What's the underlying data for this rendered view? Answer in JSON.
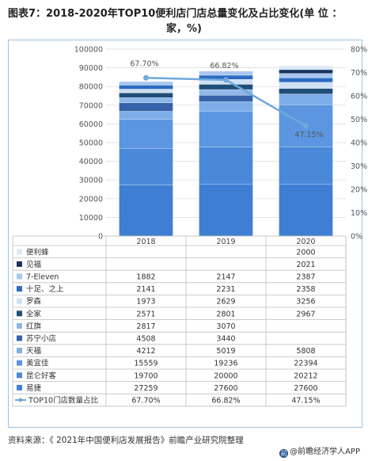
{
  "title": {
    "line1": "图表7：2018-2020年TOP10便利店门店总量变化及占比变化(单 位 ：",
    "line2": "家，%)"
  },
  "source_text": "资料来源：《 2021年中国便利店发展报告》前瞻产业研究院整理",
  "brand": {
    "text": "@前瞻经济学人APP"
  },
  "colors": {
    "line": "#6fa8dc",
    "grid": "#d9d9d9",
    "table_border": "#bfbfbf"
  },
  "chart_data": {
    "type": "bar",
    "stacked": true,
    "categories": [
      "2018",
      "2019",
      "2020"
    ],
    "y_left_ticks": [
      "100000",
      "90000",
      "80000",
      "70000",
      "60000",
      "50000",
      "40000",
      "30000",
      "20000",
      "10000",
      "0"
    ],
    "y_right_ticks": [
      "80%",
      "70%",
      "60%",
      "50%",
      "40%",
      "30%",
      "20%",
      "10%",
      "0%"
    ],
    "y_left_range": [
      0,
      100000
    ],
    "y_right_range": [
      0,
      80
    ],
    "grid": true,
    "series": [
      {
        "name": "易捷",
        "color": "#3f7fd3",
        "values": [
          27259,
          27600,
          27600
        ],
        "labels": [
          "27259",
          "27600",
          "27600"
        ]
      },
      {
        "name": "昆仑好客",
        "color": "#4a89d9",
        "values": [
          19700,
          20000,
          20212
        ],
        "labels": [
          "19700",
          "20000",
          "20212"
        ]
      },
      {
        "name": "美宜佳",
        "color": "#5c96e0",
        "values": [
          15559,
          19236,
          22394
        ],
        "labels": [
          "15559",
          "19236",
          "22394"
        ]
      },
      {
        "name": "天福",
        "color": "#7eaee9",
        "values": [
          4212,
          5019,
          5808
        ],
        "labels": [
          "4212",
          "5019",
          "5808"
        ]
      },
      {
        "name": "苏宁小店",
        "color": "#3562a8",
        "values": [
          4508,
          3440,
          null
        ],
        "labels": [
          "4508",
          "3440",
          ""
        ]
      },
      {
        "name": "红旗",
        "color": "#8fb8ea",
        "values": [
          2817,
          3070,
          null
        ],
        "labels": [
          "2817",
          "3070",
          ""
        ]
      },
      {
        "name": "全家",
        "color": "#1f4e79",
        "values": [
          2571,
          2801,
          2967
        ],
        "labels": [
          "2571",
          "2801",
          "2967"
        ]
      },
      {
        "name": "罗森",
        "color": "#cfe0f5",
        "values": [
          1973,
          2629,
          3256
        ],
        "labels": [
          "1973",
          "2629",
          "3256"
        ]
      },
      {
        "name": "十足、之上",
        "color": "#2e6bc2",
        "values": [
          2141,
          2231,
          2358
        ],
        "labels": [
          "2141",
          "2231",
          "2358"
        ]
      },
      {
        "name": "7-Eleven",
        "color": "#a9c6ee",
        "values": [
          1882,
          2147,
          2387
        ],
        "labels": [
          "1882",
          "2147",
          "2387"
        ]
      },
      {
        "name": "见福",
        "color": "#16365f",
        "values": [
          null,
          null,
          2021
        ],
        "labels": [
          "",
          "",
          "2021"
        ]
      },
      {
        "name": "便利蜂",
        "color": "#dbe8f7",
        "values": [
          null,
          null,
          2000
        ],
        "labels": [
          "",
          "",
          "2000"
        ]
      }
    ],
    "line_series": {
      "name": "TOP10门店数量占比",
      "values": [
        67.7,
        66.82,
        47.15
      ],
      "labels": [
        "67.70%",
        "66.82%",
        "47.15%"
      ]
    }
  }
}
